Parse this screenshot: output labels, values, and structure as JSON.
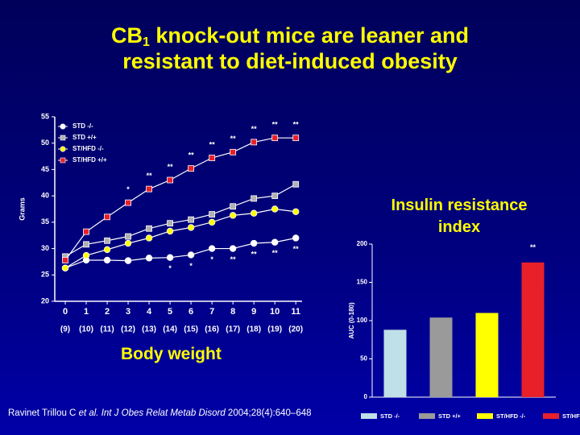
{
  "title": {
    "main": "CB",
    "subscript": "1",
    "line1_rest": " knock-out mice are leaner and",
    "line2": "resistant to diet-induced obesity"
  },
  "reference": {
    "author": "Ravinet Trillou C ",
    "etal": "et al.",
    "journal": " Int J Obes Relat Metab Disord",
    "citation": " 2004;28(4):640–648"
  },
  "chart_data": [
    {
      "type": "line",
      "caption": "Body weight",
      "y_label": "Grams",
      "x": [
        0,
        1,
        2,
        3,
        4,
        5,
        6,
        7,
        8,
        9,
        10,
        11
      ],
      "xticks": [
        0,
        1,
        2,
        3,
        4,
        5,
        6,
        7,
        8,
        9,
        10,
        11
      ],
      "x_sublabels": [
        "(9)",
        "(10)",
        "(11)",
        "(12)",
        "(13)",
        "(14)",
        "(15)",
        "(16)",
        "(17)",
        "(18)",
        "(19)",
        "(20)"
      ],
      "xlim": [
        -0.5,
        11.3
      ],
      "ylim": [
        20,
        55
      ],
      "yticks": [
        20,
        25,
        30,
        35,
        40,
        45,
        50,
        55
      ],
      "legend": "top-left",
      "series": [
        {
          "name": "STD -/-",
          "color": "#ffffff",
          "marker": "circle",
          "values": [
            26.3,
            27.8,
            27.8,
            27.7,
            28.2,
            28.3,
            28.8,
            30.0,
            30.0,
            31.0,
            31.2,
            32.0
          ],
          "annotations": [
            null,
            null,
            null,
            null,
            null,
            "*",
            "*",
            "*",
            "**",
            "**",
            "**",
            "**"
          ],
          "annotation_side": "below"
        },
        {
          "name": "STD +/+",
          "color": "#b0b0b0",
          "marker": "square",
          "values": [
            28.5,
            30.8,
            31.5,
            32.3,
            33.8,
            34.8,
            35.5,
            36.5,
            38.0,
            39.5,
            40.0,
            42.2
          ]
        },
        {
          "name": "ST/HFD -/-",
          "color": "#ffff00",
          "marker": "circle",
          "values": [
            26.3,
            28.7,
            29.8,
            31.0,
            32.0,
            33.3,
            34.0,
            35.0,
            36.3,
            36.7,
            37.5,
            37.0
          ]
        },
        {
          "name": "ST/HFD +/+",
          "color": "#e8202a",
          "marker": "square",
          "values": [
            27.8,
            33.2,
            36.0,
            38.7,
            41.3,
            43.0,
            45.2,
            47.2,
            48.3,
            50.2,
            51.0,
            51.0
          ],
          "annotations": [
            null,
            null,
            null,
            "*",
            "**",
            "**",
            "**",
            "**",
            "**",
            "**",
            "**",
            "**"
          ],
          "annotation_side": "above"
        }
      ]
    },
    {
      "type": "bar",
      "title": "Insulin resistance index",
      "y_label": "AUC (0-180)",
      "categories": [
        "STD -/-",
        "STD +/+",
        "ST/HFD -/-",
        "ST/HFD +/+"
      ],
      "values": [
        88,
        104,
        110,
        176
      ],
      "colors": [
        "#bfe0e6",
        "#9a9a9a",
        "#ffff00",
        "#e8202a"
      ],
      "annotations": [
        null,
        null,
        null,
        "**"
      ],
      "ylim": [
        0,
        200
      ],
      "yticks": [
        0,
        50,
        100,
        150,
        200
      ],
      "legend": "bottom"
    }
  ]
}
